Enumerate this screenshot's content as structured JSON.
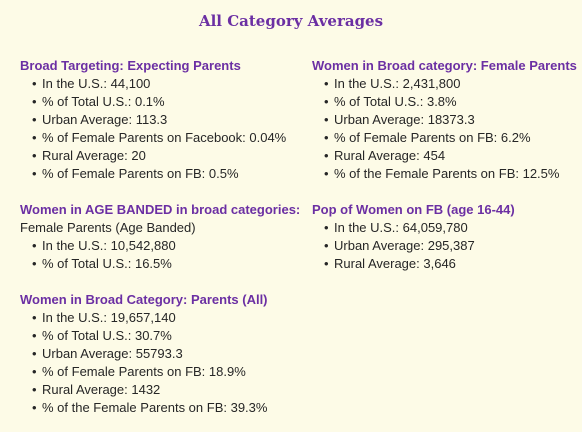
{
  "title": "All Category Averages",
  "columns": [
    [
      {
        "heading": "Broad Targeting: Expecting Parents",
        "items": [
          "In the U.S.: 44,100",
          "% of Total U.S.: 0.1%",
          "Urban Average: 113.3",
          "% of Female Parents on Facebook: 0.04%",
          "Rural Average: 20",
          "% of Female Parents on FB: 0.5%"
        ]
      },
      {
        "heading": "Women in AGE BANDED in broad categories:",
        "subheading": "Female Parents (Age Banded)",
        "items": [
          "In the U.S.: 10,542,880",
          "% of Total U.S.: 16.5%"
        ]
      },
      {
        "heading": "Women in Broad Category: Parents (All)",
        "items": [
          "In the U.S.: 19,657,140",
          "% of Total U.S.: 30.7%",
          "Urban Average: 55793.3",
          "% of Female Parents on FB: 18.9%",
          "Rural Average: 1432",
          "% of the Female Parents on FB: 39.3%"
        ]
      }
    ],
    [
      {
        "heading": "Women in Broad category: Female Parents",
        "items": [
          "In the U.S.: 2,431,800",
          "% of Total U.S.: 3.8%",
          "Urban Average: 18373.3",
          "% of Female Parents on FB: 6.2%",
          "Rural Average: 454",
          "% of the Female Parents on FB: 12.5%"
        ]
      },
      {
        "heading": "Pop of Women on FB (age 16-44)",
        "items": [
          "In the U.S.: 64,059,780",
          "Urban Average: 295,387",
          "Rural Average: 3,646"
        ]
      }
    ]
  ]
}
